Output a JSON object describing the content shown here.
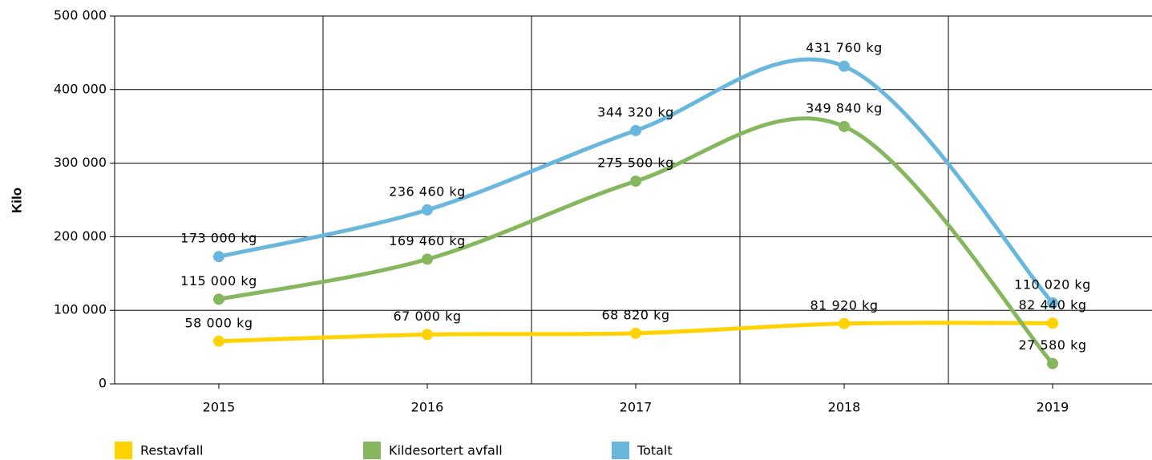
{
  "chart_data": {
    "type": "line",
    "y_label": "Kilo",
    "categories": [
      "2015",
      "2016",
      "2017",
      "2018",
      "2019"
    ],
    "series": [
      {
        "name": "Restavfall",
        "color": "#ffd200",
        "values": [
          58000,
          67000,
          68820,
          81920,
          82440
        ],
        "value_labels": [
          "58 000 kg",
          "67 000 kg",
          "68 820 kg",
          "81 920 kg",
          "82 440 kg"
        ]
      },
      {
        "name": "Kildesortert avfall",
        "color": "#86b75e",
        "values": [
          115000,
          169460,
          275500,
          349840,
          27580
        ],
        "value_labels": [
          "115 000 kg",
          "169 460 kg",
          "275 500 kg",
          "349 840 kg",
          "27 580 kg"
        ]
      },
      {
        "name": "Totalt",
        "color": "#6ab7dd",
        "values": [
          173000,
          236460,
          344320,
          431760,
          110020
        ],
        "value_labels": [
          "173 000 kg",
          "236 460 kg",
          "344 320 kg",
          "431 760 kg",
          "110 020 kg"
        ]
      }
    ],
    "ylim": [
      0,
      500000
    ],
    "yticks": [
      {
        "value": 0,
        "label": "0"
      },
      {
        "value": 100000,
        "label": "100 000"
      },
      {
        "value": 200000,
        "label": "200 000"
      },
      {
        "value": 300000,
        "label": "300 000"
      },
      {
        "value": 400000,
        "label": "400 000"
      },
      {
        "value": 500000,
        "label": "500 000"
      }
    ],
    "grid": true
  }
}
